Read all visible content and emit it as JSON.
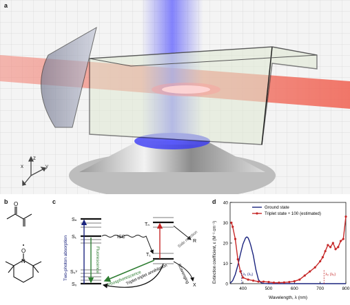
{
  "labels": {
    "a": "a",
    "b": "b",
    "c": "c",
    "d": "d"
  },
  "panel_a": {
    "axis_x": "x",
    "axis_y": "y",
    "axis_z": "z"
  },
  "panel_b": {
    "atom_o": "O",
    "atom_n": "N",
    "radical_o": "O"
  },
  "panel_c": {
    "levels": {
      "sn": "Sₙ",
      "s1": "S₁",
      "s1v": "S₁ᵛ",
      "s0v": "S₀ᵛ",
      "s0": "S₀",
      "tn": "Tₙ",
      "t1": "T₁"
    },
    "processes": {
      "two_photon": "Two-photon absorption",
      "fluorescence": "Fluorescence",
      "isc": "ISC",
      "phosphorescence": "Phosphorescence",
      "tta": "Triplet-triplet annihilation",
      "side_reaction": "Side reaction",
      "scavenging": "Scavenging",
      "r": "R",
      "x": "X"
    }
  },
  "chart_data": {
    "type": "line",
    "xlabel": "Wavelength, λ (nm)",
    "ylabel": "Extinction coefficient, ε (M⁻¹ cm⁻¹)",
    "xlim": [
      350,
      800
    ],
    "ylim": [
      0,
      40
    ],
    "xticks": [
      "400",
      "500",
      "600",
      "700",
      "800"
    ],
    "yticks": [
      "0",
      "10",
      "20",
      "30",
      "40"
    ],
    "legend_position": "top-center",
    "series": [
      {
        "name": "Ground state",
        "color": "#1a237e",
        "x": [
          350,
          360,
          370,
          380,
          390,
          400,
          410,
          415,
          420,
          425,
          430,
          440,
          450,
          460,
          470,
          480,
          500,
          550,
          600,
          650,
          700,
          750,
          800
        ],
        "y": [
          0.2,
          1.5,
          4.5,
          9,
          14.5,
          19.5,
          22.5,
          23,
          22.5,
          21,
          19,
          14,
          7,
          2,
          0.5,
          0.1,
          0,
          0,
          0,
          0,
          0,
          0,
          0
        ]
      },
      {
        "name": "Triplet state ÷ 100 (estimated)",
        "color": "#c62828",
        "x": [
          355,
          360,
          370,
          380,
          390,
          400,
          420,
          440,
          460,
          480,
          500,
          520,
          540,
          560,
          580,
          600,
          620,
          640,
          660,
          680,
          700,
          710,
          720,
          730,
          740,
          750,
          760,
          770,
          780,
          790,
          800
        ],
        "y": [
          30,
          28,
          22,
          12,
          6,
          3,
          2,
          1.5,
          1,
          1,
          0.8,
          0.5,
          0.5,
          0.6,
          0.8,
          1.2,
          2,
          4,
          6,
          8,
          11,
          13,
          16,
          19,
          18,
          20,
          17,
          18,
          21,
          22,
          33
        ]
      }
    ],
    "annotations": {
      "lambda1": "λ₁ (λ₁)",
      "lambda2": "λ₂ (λ₂)"
    },
    "annotation_x": [
      395,
      715
    ]
  }
}
